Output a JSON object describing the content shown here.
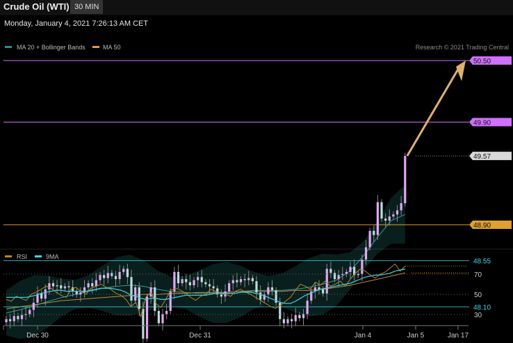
{
  "header": {
    "title": "Crude Oil (WTI)",
    "timeframe": "30 MIN",
    "datetime": "Monday, January 4, 2021 7:26:13 AM CET",
    "credit": "Research © 2021 Trading Central"
  },
  "colors": {
    "magenta": "#d070ff",
    "orange": "#e0a030",
    "cyan": "#40d8e0",
    "teal": "#2a8f8a",
    "rsi": "#b8862a",
    "arrow": "#e0b070"
  },
  "chart_data": [
    {
      "type": "candlestick",
      "legend": [
        "MA 20 + Bollinger Bands",
        "MA 50"
      ],
      "x_ticks": [
        "Dec 30",
        "Dec 31",
        "Jan 4",
        "Jan 5",
        "Jan 17"
      ],
      "ylim": [
        47.6,
        50.75
      ],
      "levels": [
        {
          "value": 50.5,
          "label": "50.50",
          "kind": "target"
        },
        {
          "value": 49.9,
          "label": "49.90",
          "kind": "resistance"
        },
        {
          "value": 49.57,
          "label": "49.57",
          "kind": "last"
        },
        {
          "value": 48.9,
          "label": "48.90",
          "kind": "pivot"
        },
        {
          "value": 48.55,
          "label": "48.55",
          "kind": "support"
        },
        {
          "value": 48.1,
          "label": "48.10",
          "kind": "support"
        }
      ],
      "closes": [
        47.98,
        47.96,
        48.01,
        47.98,
        48.02,
        48.03,
        48.07,
        48.14,
        48.23,
        48.18,
        48.27,
        48.33,
        48.3,
        48.31,
        48.28,
        48.3,
        48.29,
        48.25,
        48.22,
        48.24,
        48.29,
        48.33,
        48.3,
        48.36,
        48.41,
        48.38,
        48.43,
        48.4,
        48.37,
        48.44,
        48.47,
        48.39,
        48.16,
        48.29,
        48.08,
        47.79,
        48.2,
        48.29,
        48.06,
        47.94,
        48.03,
        48.06,
        48.25,
        48.44,
        48.33,
        48.37,
        48.34,
        48.31,
        48.36,
        48.39,
        48.34,
        48.32,
        48.3,
        48.28,
        48.22,
        48.2,
        48.25,
        48.33,
        48.36,
        48.34,
        48.37,
        48.36,
        48.38,
        48.35,
        48.24,
        48.17,
        48.22,
        48.29,
        48.26,
        48.14,
        47.98,
        47.94,
        47.98,
        47.96,
        48.02,
        47.99,
        48.03,
        48.16,
        48.25,
        48.29,
        48.27,
        48.23,
        48.47,
        48.43,
        48.37,
        48.41,
        48.42,
        48.44,
        48.49,
        48.41,
        48.42,
        48.56,
        48.68,
        48.84,
        48.8,
        49.12,
        48.96,
        48.94,
        48.98,
        49.0,
        49.04,
        49.11,
        49.57
      ],
      "ma20": [
        48.04,
        48.07,
        48.11,
        48.15,
        48.19,
        48.22,
        48.25,
        48.28,
        48.3,
        48.31,
        48.3,
        48.27,
        48.25,
        48.24,
        48.23,
        48.23,
        48.24,
        48.25,
        48.26,
        48.26,
        48.26,
        48.27,
        48.29,
        48.32,
        48.36,
        48.45,
        48.6,
        48.78,
        48.94,
        49.0
      ],
      "ma50": [
        48.08,
        48.1,
        48.12,
        48.14,
        48.16,
        48.17,
        48.18,
        48.19,
        48.2,
        48.21,
        48.22,
        48.22,
        48.23,
        48.23,
        48.24,
        48.24,
        48.24,
        48.25,
        48.25,
        48.25,
        48.25,
        48.26,
        48.26,
        48.27,
        48.29,
        48.31,
        48.34,
        48.37,
        48.4,
        48.43
      ]
    },
    {
      "type": "line",
      "legend": [
        "RSI",
        "9MA"
      ],
      "y_ticks": [
        70,
        50,
        30
      ],
      "ylim": [
        22,
        82
      ],
      "last_rsi": 78,
      "rsi": [
        45,
        43,
        48,
        46,
        44,
        50,
        52,
        55,
        58,
        56,
        52,
        49,
        47,
        55,
        57,
        53,
        50,
        56,
        58,
        60,
        57,
        55,
        51,
        49,
        45,
        38,
        42,
        28,
        47,
        52,
        41,
        37,
        45,
        54,
        56,
        54,
        51,
        47,
        44,
        48,
        50,
        55,
        53,
        51,
        50,
        48,
        53,
        55,
        52,
        50,
        47,
        44,
        41,
        38,
        36,
        39,
        43,
        47,
        54,
        60,
        58,
        55,
        62,
        59,
        63,
        58,
        60,
        63,
        58,
        65,
        71,
        75,
        73,
        69,
        66,
        70,
        72,
        76,
        80,
        73,
        78
      ],
      "ma9": [
        47,
        47,
        47,
        47,
        47,
        48,
        49,
        51,
        52,
        53,
        54,
        54,
        53,
        53,
        53,
        53,
        53,
        54,
        55,
        56,
        56,
        56,
        55,
        54,
        52,
        49,
        48,
        46,
        45,
        46,
        46,
        45,
        45,
        46,
        47,
        48,
        49,
        49,
        49,
        49,
        49,
        50,
        51,
        51,
        51,
        51,
        51,
        52,
        52,
        52,
        51,
        50,
        48,
        46,
        44,
        42,
        41,
        41,
        43,
        46,
        49,
        51,
        53,
        55,
        56,
        57,
        58,
        59,
        60,
        61,
        63,
        65,
        67,
        68,
        69,
        69,
        70,
        71,
        73,
        74,
        75
      ]
    }
  ]
}
